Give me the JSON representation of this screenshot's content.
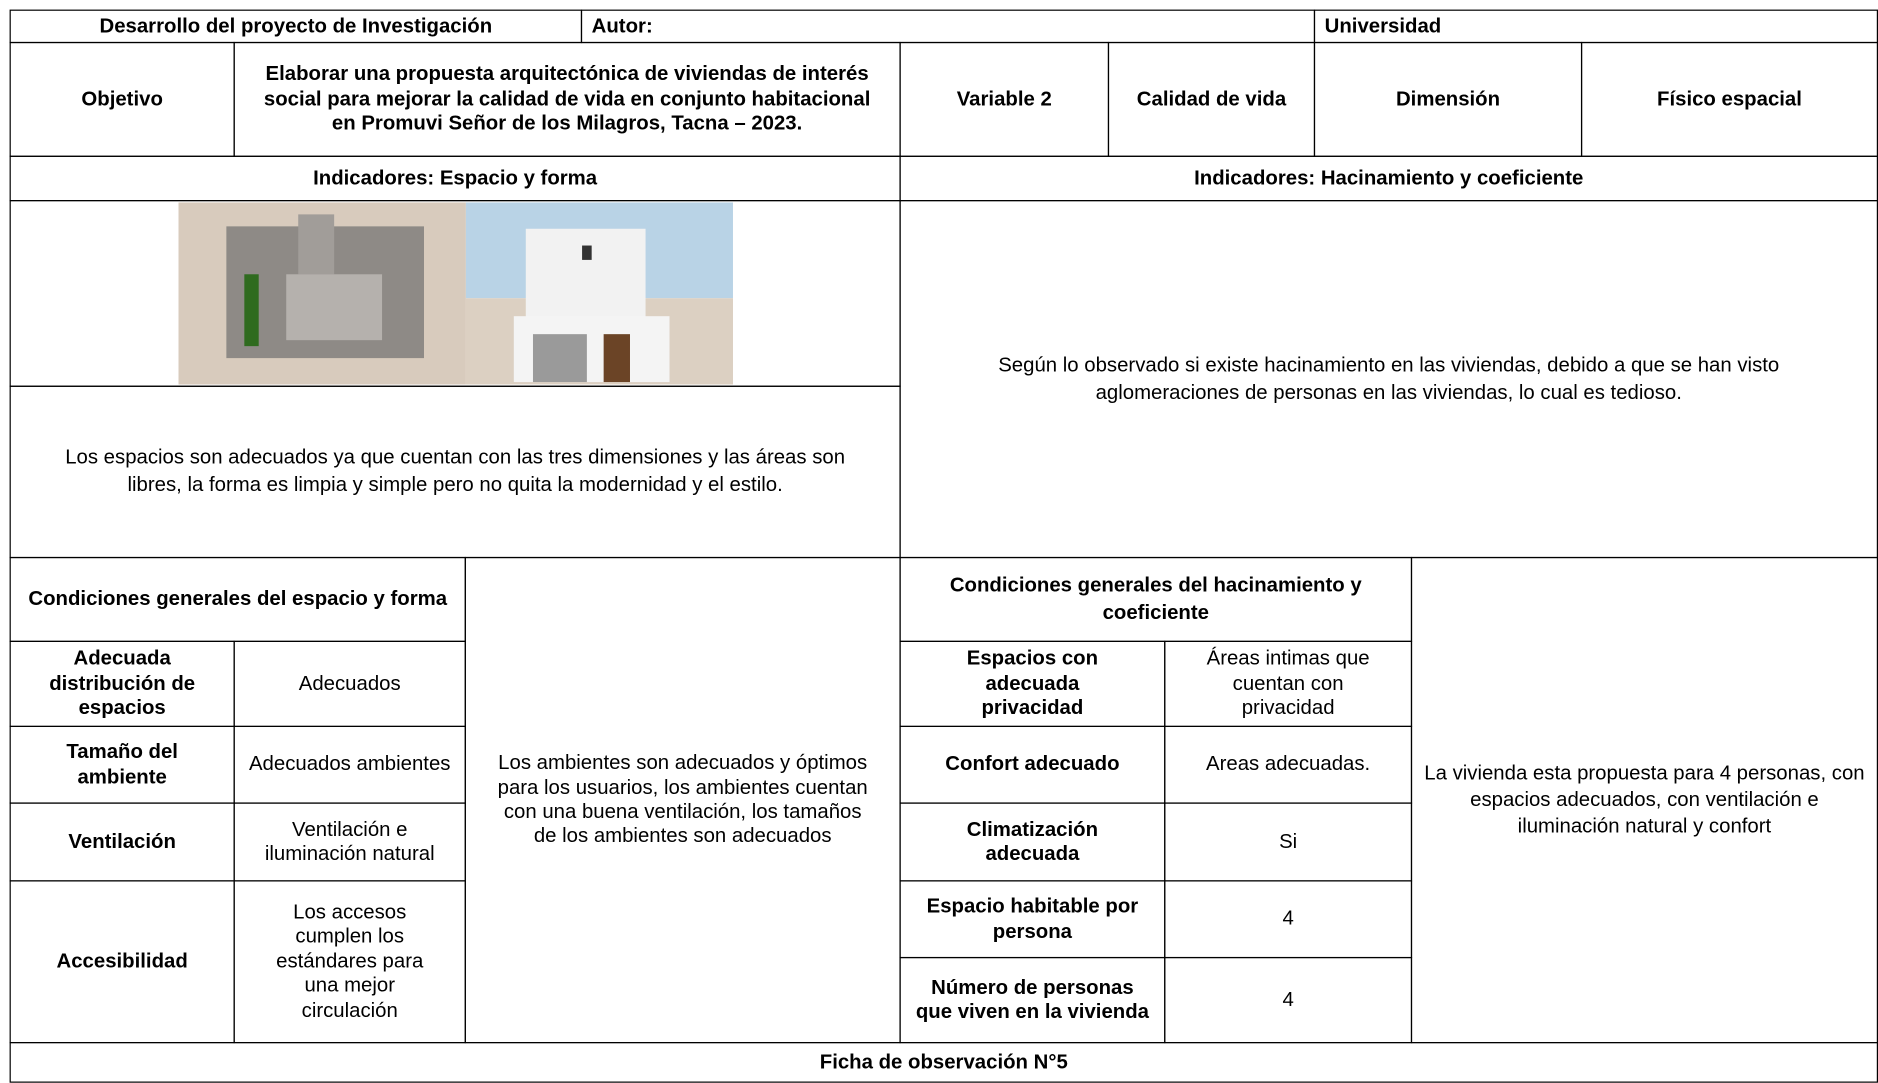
{
  "header": {
    "project": "Desarrollo del proyecto de Investigación",
    "author_label": "Autor:",
    "university_label": "Universidad"
  },
  "objective": {
    "label": "Objetivo",
    "text": "Elaborar una propuesta arquitectónica de viviendas de interés social para mejorar la calidad de vida en conjunto habitacional en Promuvi Señor de los Milagros, Tacna – 2023.",
    "variable_label": "Variable 2",
    "variable": "Calidad de vida",
    "dimension_label": "Dimensión",
    "dimension": "Físico espacial"
  },
  "left": {
    "indicator": "Indicadores: Espacio y forma",
    "description": "Los espacios son adecuados ya que cuentan con las tres dimensiones y las áreas son libres, la forma es limpia y simple pero no quita la modernidad y el estilo.",
    "conditions_title": "Condiciones generales del espacio y forma",
    "rows": [
      [
        "Adecuada distribución de espacios",
        "Adecuados"
      ],
      [
        "Tamaño del ambiente",
        "Adecuados ambientes"
      ],
      [
        "Ventilación",
        "Ventilación e iluminación natural"
      ],
      [
        "Accesibilidad",
        "Los accesos cumplen los estándares para una mejor circulación"
      ]
    ],
    "summary": "Los ambientes son adecuados y óptimos para los usuarios, los ambientes cuentan con una buena ventilación, los tamaños de los ambientes son adecuados"
  },
  "right": {
    "indicator": "Indicadores: Hacinamiento y coeficiente",
    "description": "Según lo observado si existe hacinamiento en las viviendas, debido a que se han visto aglomeraciones de personas en las viviendas, lo cual es tedioso.",
    "conditions_title": "Condiciones generales del hacinamiento y coeficiente",
    "rows": [
      [
        "Espacios con adecuada privacidad",
        "Áreas intimas que cuentan con privacidad"
      ],
      [
        "Confort adecuado",
        "Areas adecuadas."
      ],
      [
        "Climatización adecuada",
        "Si"
      ],
      [
        "Espacio habitable por persona",
        "4"
      ],
      [
        "Número de personas que viven en la vivienda",
        "4"
      ]
    ],
    "summary": "La vivienda esta propuesta para 4 personas, con espacios adecuados, con ventilación e iluminación natural y confort"
  },
  "footer": "Ficha de observación N°5"
}
